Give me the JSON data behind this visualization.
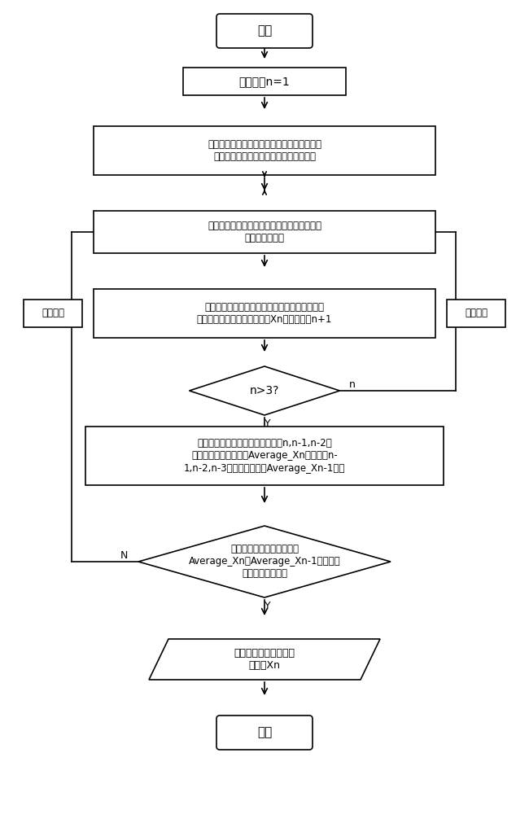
{
  "bg_color": "#ffffff",
  "line_color": "#000000",
  "text_color": "#000000",
  "font_size": 8.5,
  "nodes": {
    "start": {
      "text": "开始",
      "type": "rounded_rect"
    },
    "init": {
      "text": "计算次数n=1",
      "type": "rect"
    },
    "modal": {
      "text": "按交通方式分担模型进行交通方式选择，记录\n每种交通方式下的交通需求（单位：人）",
      "type": "rect"
    },
    "convert": {
      "text": "将以人数为单位的交通需求转换成以车辆数为\n单位的交通需求",
      "type": "rect"
    },
    "assign": {
      "text": "对每一种具体的交通方式，按随机用户平衡模型\n进行一次交通分配，得到流量Xn，计算次数n+1",
      "type": "rect"
    },
    "diamond1": {
      "text": "n>3?",
      "type": "diamond"
    },
    "average": {
      "text": "对每一种具体的交通方式，求取第n,n-1,n-2次\n计算所得流量的平均值Average_Xn，并与第n-\n1,n-2,n-3次的流量平均值Average_Xn-1比较",
      "type": "rect"
    },
    "diamond2": {
      "text": "对所有的交通方式，都满足\nAverage_Xn与Average_Xn-1的差值在\n精度要求范围内？",
      "type": "diamond"
    },
    "output": {
      "text": "输出每种交通方式的流\n量矩阵Xn",
      "type": "parallelogram"
    },
    "end": {
      "text": "结束",
      "type": "rounded_rect"
    },
    "update_left": {
      "text": "更新路阻",
      "type": "rect"
    },
    "update_right": {
      "text": "更新路阻",
      "type": "rect"
    }
  }
}
